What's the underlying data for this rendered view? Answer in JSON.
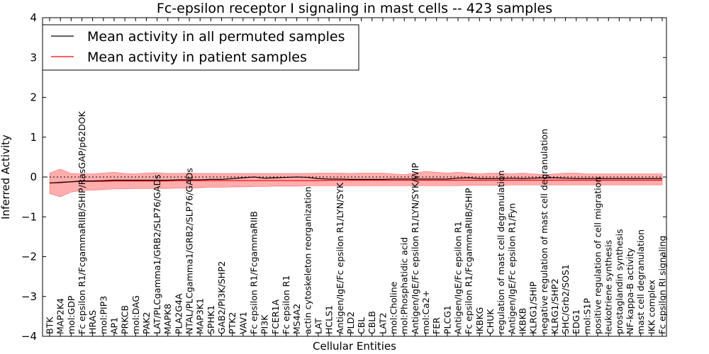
{
  "chart_data": {
    "type": "line",
    "title": "Fc-epsilon receptor I signaling in mast cells -- 423 samples",
    "xlabel": "Cellular Entities",
    "ylabel": "Inferred Activity",
    "ylim": [
      -4,
      4
    ],
    "yticks": [
      -4,
      -3,
      -2,
      -1,
      0,
      1,
      2,
      3,
      4
    ],
    "reference_line": 0,
    "grid": false,
    "legend_position": "top-left",
    "categories": [
      "BTK",
      "MAP2K4",
      "mol:GDP",
      "Fc epsilon R1/FcgammaRIIB/SHIP/RasGAP/p62DOK",
      "HRAS",
      "mol:PIP3",
      "AP1",
      "PRKCB",
      "mol:DAG",
      "PAK2",
      "LAT/PLCgamma1/GRB2/SLP76/GADs",
      "MAPK8",
      "PLA2G4A",
      "NTAL/PLCgamma1/GRB2/SLP76/GADs",
      "MAP3K1",
      "SPHK1",
      "GAB2/PI3K/SHP2",
      "PTK2",
      "VAV1",
      "Fc epsilon R1/FcgammaRIIB",
      "PI3K",
      "FCER1A",
      "Fc epsilon R1",
      "MS4A2",
      "actin cytoskeleton reorganization",
      "LAT",
      "HCLS1",
      "Antigen/IgE/Fc epsilon R1/LYN/SYK",
      "PLD2",
      "CBL",
      "CBLB",
      "LAT2",
      "mol:Choline",
      "mol:Phosphatidic acid",
      "Antigen/IgE/Fc epsilon R1/LYN/SYK/WIP",
      "mol:Ca2+",
      "FER",
      "PLCG1",
      "Antigen/IgE/Fc epsilon R1",
      "Fc epsilon R1/FcgammaRIIB/SHIP",
      "IKBKG",
      "CHUK",
      "regulation of mast cell degranulation",
      "Antigen/IgE/Fc epsilon R1/Fyn",
      "IKBKB",
      "KLRG1/SHIP",
      "negative regulation of mast cell degranulation",
      "KLRG1/SHP2",
      "SHC/Grb2/SOS1",
      "EDG1",
      "mol:S1P",
      "positive regulation of cell migration",
      "leukotriene synthesis",
      "prostaglandin synthesis",
      "NF-kappa-B activity",
      "mast cell degranulation",
      "IKK complex",
      "Fc epsilon RI signaling"
    ],
    "series": [
      {
        "name": "Mean activity in all permuted samples",
        "color": "#000000",
        "values": [
          -0.15,
          -0.14,
          -0.12,
          -0.1,
          -0.1,
          -0.09,
          -0.08,
          -0.08,
          -0.08,
          -0.08,
          -0.08,
          -0.08,
          -0.07,
          -0.07,
          -0.07,
          -0.06,
          -0.06,
          -0.04,
          -0.02,
          0.0,
          -0.03,
          -0.02,
          -0.01,
          0.0,
          -0.01,
          -0.04,
          -0.05,
          -0.05,
          -0.06,
          -0.06,
          -0.06,
          -0.06,
          -0.05,
          -0.05,
          -0.05,
          -0.05,
          -0.05,
          -0.05,
          -0.03,
          -0.02,
          -0.04,
          -0.04,
          -0.04,
          -0.03,
          -0.04,
          -0.03,
          -0.02,
          -0.02,
          -0.03,
          -0.04,
          -0.04,
          -0.04,
          -0.04,
          -0.04,
          -0.04,
          -0.04,
          -0.04,
          -0.04
        ],
        "band_low": [
          -0.42,
          -0.5,
          -0.38,
          -0.34,
          -0.33,
          -0.32,
          -0.3,
          -0.3,
          -0.29,
          -0.29,
          -0.29,
          -0.29,
          -0.28,
          -0.28,
          -0.27,
          -0.26,
          -0.26,
          -0.25,
          -0.25,
          -0.24,
          -0.24,
          -0.23,
          -0.23,
          -0.23,
          -0.22,
          -0.22,
          -0.22,
          -0.22,
          -0.22,
          -0.22,
          -0.22,
          -0.22,
          -0.22,
          -0.22,
          -0.22,
          -0.22,
          -0.22,
          -0.22,
          -0.22,
          -0.21,
          -0.21,
          -0.21,
          -0.21,
          -0.2,
          -0.2,
          -0.2,
          -0.2,
          -0.2,
          -0.2,
          -0.2,
          -0.2,
          -0.2,
          -0.2,
          -0.2,
          -0.2,
          -0.2,
          -0.2,
          -0.2
        ],
        "band_high": [
          0.1,
          0.2,
          0.09,
          0.08,
          0.08,
          0.1,
          0.12,
          0.09,
          0.08,
          0.1,
          0.11,
          0.09,
          0.09,
          0.1,
          0.09,
          0.09,
          0.09,
          0.09,
          0.09,
          0.09,
          0.09,
          0.09,
          0.09,
          0.09,
          0.09,
          0.1,
          0.1,
          0.1,
          0.09,
          0.1,
          0.1,
          0.1,
          0.08,
          0.06,
          0.1,
          0.14,
          0.12,
          0.1,
          0.12,
          0.1,
          0.08,
          0.1,
          0.1,
          0.08,
          0.1,
          0.08,
          0.06,
          0.08,
          0.1,
          0.1,
          0.08,
          0.08,
          0.08,
          0.08,
          0.08,
          0.08,
          0.08,
          0.08
        ]
      },
      {
        "name": "Mean activity in patient samples",
        "color": "#ff0000",
        "values": [
          -0.15,
          -0.13,
          -0.12,
          -0.11,
          -0.11,
          -0.11,
          -0.1,
          -0.1,
          -0.1,
          -0.1,
          -0.1,
          -0.1,
          -0.09,
          -0.09,
          -0.09,
          -0.09,
          -0.09,
          -0.09,
          -0.09,
          -0.09,
          -0.09,
          -0.09,
          -0.09,
          -0.09,
          -0.09,
          -0.09,
          -0.08,
          -0.08,
          -0.08,
          -0.08,
          -0.08,
          -0.08,
          -0.08,
          -0.08,
          -0.08,
          -0.08,
          -0.08,
          -0.08,
          -0.08,
          -0.08,
          -0.08,
          -0.08,
          -0.08,
          -0.08,
          -0.08,
          -0.08,
          -0.08,
          -0.08,
          -0.08,
          -0.08,
          -0.08,
          -0.08,
          -0.08,
          -0.08,
          -0.08,
          -0.08,
          -0.08,
          -0.08
        ]
      }
    ]
  }
}
